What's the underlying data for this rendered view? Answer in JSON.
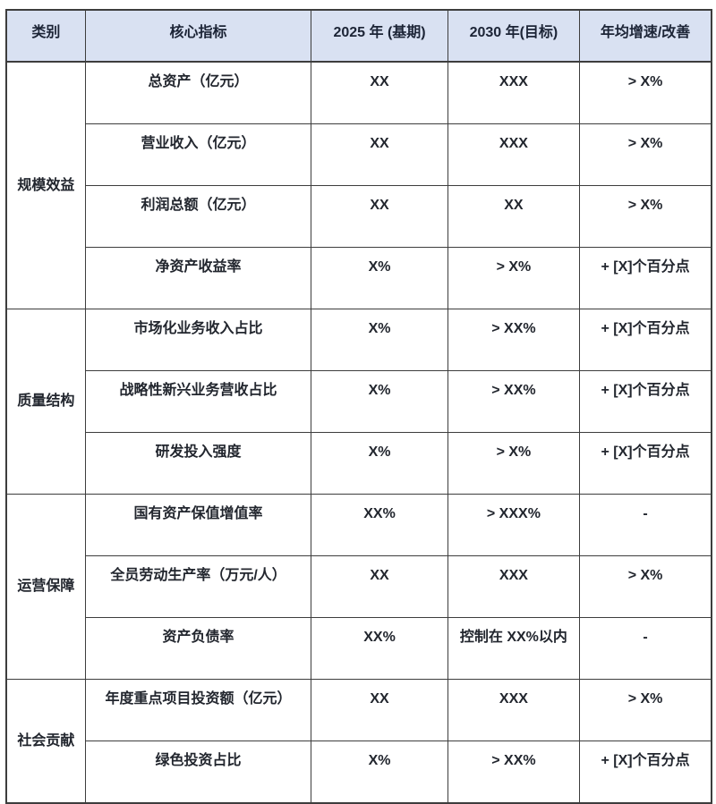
{
  "table": {
    "headers": [
      "类别",
      "核心指标",
      "2025 年 (基期)",
      "2030 年(目标)",
      "年均增速/改善"
    ],
    "groups": [
      {
        "category": "规模效益",
        "rows": [
          {
            "indicator": "总资产（亿元）",
            "base": "XX",
            "target": "XXX",
            "growth": "> X%"
          },
          {
            "indicator": "营业收入（亿元）",
            "base": "XX",
            "target": "XXX",
            "growth": "> X%"
          },
          {
            "indicator": "利润总额（亿元）",
            "base": "XX",
            "target": "XX",
            "growth": "> X%"
          },
          {
            "indicator": "净资产收益率",
            "base": "X%",
            "target": "> X%",
            "growth": "+ [X]个百分点"
          }
        ]
      },
      {
        "category": "质量结构",
        "rows": [
          {
            "indicator": "市场化业务收入占比",
            "base": "X%",
            "target": "> XX%",
            "growth": "+ [X]个百分点"
          },
          {
            "indicator": "战略性新兴业务营收占比",
            "base": "X%",
            "target": "> XX%",
            "growth": "+ [X]个百分点"
          },
          {
            "indicator": "研发投入强度",
            "base": "X%",
            "target": "> X%",
            "growth": "+ [X]个百分点"
          }
        ]
      },
      {
        "category": "运营保障",
        "rows": [
          {
            "indicator": "国有资产保值增值率",
            "base": "XX%",
            "target": "> XXX%",
            "growth": "-"
          },
          {
            "indicator": "全员劳动生产率（万元/人）",
            "base": "XX",
            "target": "XXX",
            "growth": "> X%"
          },
          {
            "indicator": "资产负债率",
            "base": "XX%",
            "target": "控制在 XX%以内",
            "growth": "-"
          }
        ]
      },
      {
        "category": "社会贡献",
        "rows": [
          {
            "indicator": "年度重点项目投资额（亿元）",
            "base": "XX",
            "target": "XXX",
            "growth": "> X%"
          },
          {
            "indicator": "绿色投资占比",
            "base": "X%",
            "target": "> XX%",
            "growth": "+ [X]个百分点"
          }
        ]
      }
    ],
    "colors": {
      "header_bg": "#d9e1f2",
      "header_text": "#1c2436",
      "text": "#22262e",
      "border": "#3d3d3d"
    }
  }
}
